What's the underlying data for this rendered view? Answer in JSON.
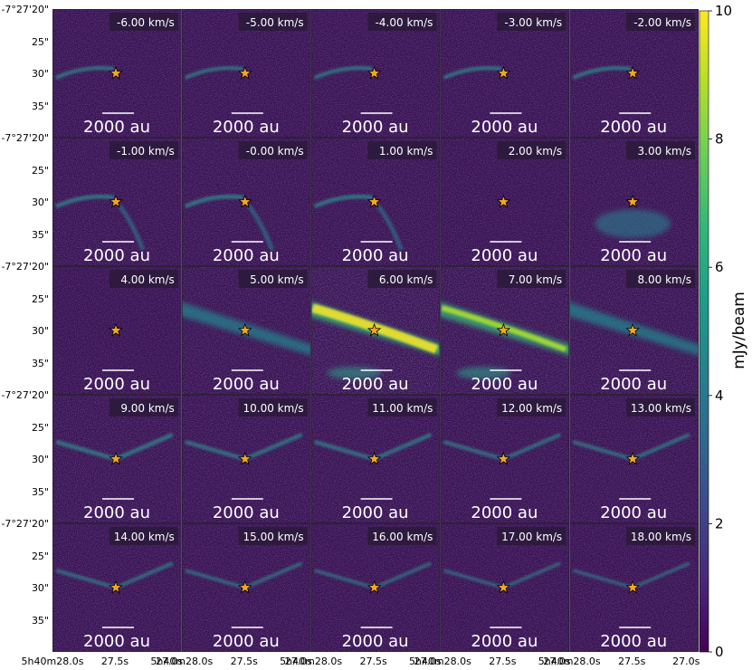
{
  "chart_data": {
    "type": "heatmap",
    "layout": "channel-map grid, 5 columns x 5 rows",
    "channels": [
      {
        "velocity": "-6.00 km/s",
        "v": -6,
        "emission": 0.35,
        "features": [
          "west-arc"
        ]
      },
      {
        "velocity": "-5.00 km/s",
        "v": -5,
        "emission": 0.33,
        "features": [
          "west-arc"
        ]
      },
      {
        "velocity": "-4.00 km/s",
        "v": -4,
        "emission": 0.34,
        "features": [
          "west-arc"
        ]
      },
      {
        "velocity": "-3.00 km/s",
        "v": -3,
        "emission": 0.36,
        "features": [
          "west-arc"
        ]
      },
      {
        "velocity": "-2.00 km/s",
        "v": -2,
        "emission": 0.38,
        "features": [
          "west-arc"
        ]
      },
      {
        "velocity": "-1.00 km/s",
        "v": -1,
        "emission": 0.42,
        "features": [
          "west-arc",
          "south-streamer"
        ]
      },
      {
        "velocity": "-0.00 km/s",
        "v": 0,
        "emission": 0.44,
        "features": [
          "west-arc",
          "south-streamer"
        ]
      },
      {
        "velocity": "1.00 km/s",
        "v": 1,
        "emission": 0.42,
        "features": [
          "west-arc",
          "south-streamer"
        ]
      },
      {
        "velocity": "2.00 km/s",
        "v": 2,
        "emission": 0.3,
        "features": [
          "faint"
        ]
      },
      {
        "velocity": "3.00 km/s",
        "v": 3,
        "emission": 0.4,
        "features": [
          "south-blob"
        ]
      },
      {
        "velocity": "4.00 km/s",
        "v": 4,
        "emission": 0.22,
        "features": [
          "faint"
        ]
      },
      {
        "velocity": "5.00 km/s",
        "v": 5,
        "emission": 0.55,
        "features": [
          "band"
        ]
      },
      {
        "velocity": "6.00 km/s",
        "v": 6,
        "emission": 1.0,
        "features": [
          "band-bright"
        ]
      },
      {
        "velocity": "7.00 km/s",
        "v": 7,
        "emission": 0.75,
        "features": [
          "band-bright"
        ]
      },
      {
        "velocity": "8.00 km/s",
        "v": 8,
        "emission": 0.58,
        "features": [
          "band"
        ]
      },
      {
        "velocity": "9.00 km/s",
        "v": 9,
        "emission": 0.5,
        "features": [
          "v-shape"
        ]
      },
      {
        "velocity": "10.00 km/s",
        "v": 10,
        "emission": 0.45,
        "features": [
          "v-shape"
        ]
      },
      {
        "velocity": "11.00 km/s",
        "v": 11,
        "emission": 0.45,
        "features": [
          "v-shape"
        ]
      },
      {
        "velocity": "12.00 km/s",
        "v": 12,
        "emission": 0.4,
        "features": [
          "v-shape"
        ]
      },
      {
        "velocity": "13.00 km/s",
        "v": 13,
        "emission": 0.4,
        "features": [
          "v-shape"
        ]
      },
      {
        "velocity": "14.00 km/s",
        "v": 14,
        "emission": 0.38,
        "features": [
          "v-shape"
        ]
      },
      {
        "velocity": "15.00 km/s",
        "v": 15,
        "emission": 0.34,
        "features": [
          "v-shape"
        ]
      },
      {
        "velocity": "16.00 km/s",
        "v": 16,
        "emission": 0.32,
        "features": [
          "v-shape"
        ]
      },
      {
        "velocity": "17.00 km/s",
        "v": 17,
        "emission": 0.3,
        "features": [
          "v-shape"
        ]
      },
      {
        "velocity": "18.00 km/s",
        "v": 18,
        "emission": 0.28,
        "features": [
          "v-shape"
        ]
      }
    ],
    "scalebar_label": "2000 au",
    "star_marker": "source position",
    "yticks": [
      "-7°27'20\"",
      "25\"",
      "30\"",
      "35\""
    ],
    "xticks_first": [
      "5h40m28.0s",
      "27.5s",
      "27.0s"
    ],
    "xticks": [
      "5h40m28.0s",
      "27.5s",
      "27.0s"
    ],
    "colorbar": {
      "label": "mJy/beam",
      "ticks": [
        0,
        2,
        4,
        6,
        8,
        10
      ],
      "range": [
        0,
        10
      ],
      "colormap": "viridis"
    }
  },
  "colors": {
    "viridis": [
      "#440154",
      "#482878",
      "#3e4989",
      "#31688e",
      "#26828e",
      "#1f9e89",
      "#35b779",
      "#6ece58",
      "#b5de2b",
      "#fde725"
    ],
    "star": "#f5a623",
    "star_edge": "#000000",
    "background": "#3b0f52"
  }
}
